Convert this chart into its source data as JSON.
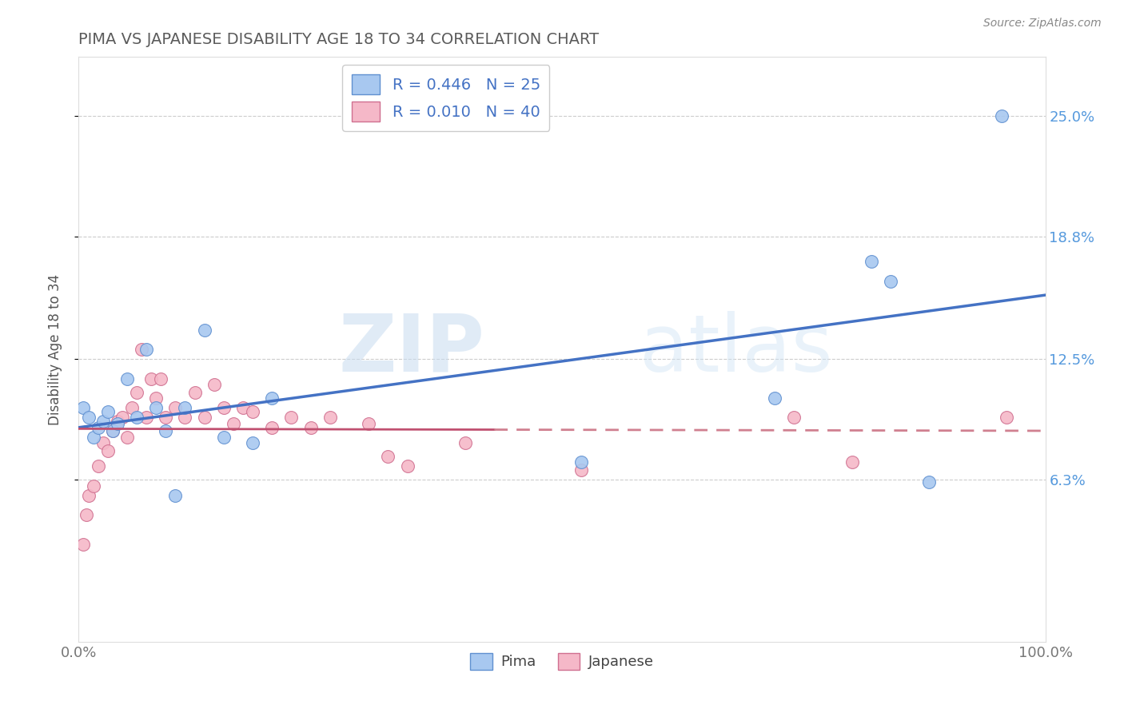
{
  "title": "PIMA VS JAPANESE DISABILITY AGE 18 TO 34 CORRELATION CHART",
  "ylabel": "Disability Age 18 to 34",
  "source": "Source: ZipAtlas.com",
  "watermark_zip": "ZIP",
  "watermark_atlas": "atlas",
  "xlim": [
    0.0,
    1.0
  ],
  "ylim": [
    -0.02,
    0.28
  ],
  "ytick_vals": [
    0.063,
    0.125,
    0.188,
    0.25
  ],
  "ytick_labels": [
    "6.3%",
    "12.5%",
    "18.8%",
    "25.0%"
  ],
  "xtick_positions": [
    0.0,
    0.2,
    0.4,
    0.6,
    0.8,
    1.0
  ],
  "xtick_labels": [
    "0.0%",
    "",
    "",
    "",
    "",
    "100.0%"
  ],
  "pima_R": 0.446,
  "pima_N": 25,
  "japanese_R": 0.01,
  "japanese_N": 40,
  "pima_color": "#A8C8F0",
  "japanese_color": "#F5B8C8",
  "pima_edge_color": "#6090D0",
  "japanese_edge_color": "#D07090",
  "pima_line_color": "#4472C4",
  "japanese_line_solid_color": "#C05070",
  "japanese_line_dash_color": "#D08090",
  "background_color": "#FFFFFF",
  "grid_color": "#CCCCCC",
  "title_color": "#5B5B5B",
  "right_label_color": "#5599DD",
  "pima_x": [
    0.005,
    0.01,
    0.015,
    0.02,
    0.025,
    0.03,
    0.035,
    0.04,
    0.05,
    0.06,
    0.07,
    0.08,
    0.09,
    0.1,
    0.11,
    0.13,
    0.15,
    0.18,
    0.2,
    0.52,
    0.72,
    0.82,
    0.84,
    0.88,
    0.955
  ],
  "pima_y": [
    0.1,
    0.095,
    0.085,
    0.09,
    0.093,
    0.098,
    0.088,
    0.092,
    0.115,
    0.095,
    0.13,
    0.1,
    0.088,
    0.055,
    0.1,
    0.14,
    0.085,
    0.082,
    0.105,
    0.072,
    0.105,
    0.175,
    0.165,
    0.062,
    0.25
  ],
  "japanese_x": [
    0.005,
    0.008,
    0.01,
    0.015,
    0.02,
    0.025,
    0.03,
    0.035,
    0.04,
    0.045,
    0.05,
    0.055,
    0.06,
    0.065,
    0.07,
    0.075,
    0.08,
    0.085,
    0.09,
    0.1,
    0.11,
    0.12,
    0.13,
    0.14,
    0.15,
    0.16,
    0.17,
    0.18,
    0.2,
    0.22,
    0.24,
    0.26,
    0.3,
    0.32,
    0.34,
    0.4,
    0.52,
    0.74,
    0.8,
    0.96
  ],
  "japanese_y": [
    0.03,
    0.045,
    0.055,
    0.06,
    0.07,
    0.082,
    0.078,
    0.088,
    0.093,
    0.095,
    0.085,
    0.1,
    0.108,
    0.13,
    0.095,
    0.115,
    0.105,
    0.115,
    0.095,
    0.1,
    0.095,
    0.108,
    0.095,
    0.112,
    0.1,
    0.092,
    0.1,
    0.098,
    0.09,
    0.095,
    0.09,
    0.095,
    0.092,
    0.075,
    0.07,
    0.082,
    0.068,
    0.095,
    0.072,
    0.095
  ]
}
